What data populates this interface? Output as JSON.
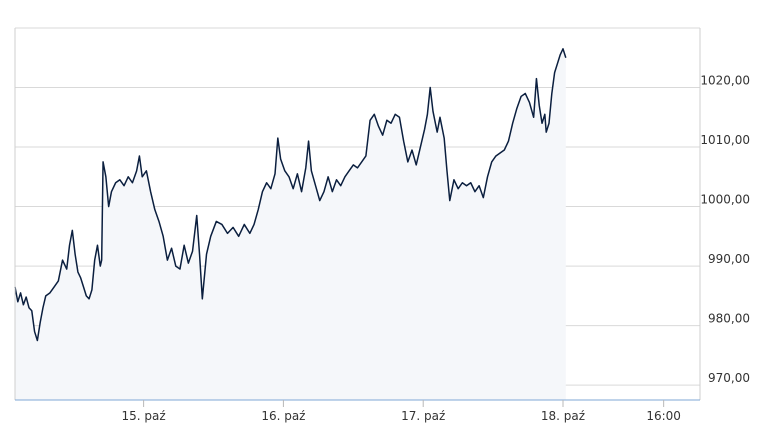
{
  "chart_data": {
    "type": "line",
    "title": "",
    "xlabel": "",
    "ylabel": "",
    "y_ticks": [
      "970,00",
      "980,00",
      "990,00",
      "1000,00",
      "1010,00",
      "1020,00"
    ],
    "y_tick_values": [
      970,
      980,
      990,
      1000,
      1010,
      1020
    ],
    "ylim": [
      967.5,
      1030
    ],
    "x_ticks": [
      "15. paź",
      "16. paź",
      "17. paź",
      "18. paź",
      "16:00"
    ],
    "x_tick_positions": [
      1,
      2,
      3,
      4,
      4.72
    ],
    "xlim": [
      0.08,
      4.98
    ],
    "grid": true,
    "legend": "none",
    "line_color": "#0b1f3f",
    "area_color": "#f5f7fa",
    "series": [
      {
        "points": [
          [
            0.08,
            986.5
          ],
          [
            0.1,
            984.0
          ],
          [
            0.12,
            985.5
          ],
          [
            0.14,
            983.5
          ],
          [
            0.16,
            984.8
          ],
          [
            0.18,
            983.0
          ],
          [
            0.2,
            982.5
          ],
          [
            0.22,
            979.0
          ],
          [
            0.24,
            977.5
          ],
          [
            0.26,
            980.5
          ],
          [
            0.28,
            983.0
          ],
          [
            0.3,
            985.0
          ],
          [
            0.33,
            985.5
          ],
          [
            0.36,
            986.5
          ],
          [
            0.39,
            987.5
          ],
          [
            0.42,
            991.0
          ],
          [
            0.45,
            989.5
          ],
          [
            0.47,
            993.5
          ],
          [
            0.49,
            996.0
          ],
          [
            0.51,
            992.0
          ],
          [
            0.53,
            989.0
          ],
          [
            0.55,
            988.0
          ],
          [
            0.57,
            986.5
          ],
          [
            0.59,
            985.0
          ],
          [
            0.61,
            984.5
          ],
          [
            0.63,
            986.0
          ],
          [
            0.65,
            991.0
          ],
          [
            0.67,
            993.5
          ],
          [
            0.69,
            990.0
          ],
          [
            0.7,
            991.0
          ],
          [
            0.71,
            1007.5
          ],
          [
            0.73,
            1005.0
          ],
          [
            0.75,
            1000.0
          ],
          [
            0.77,
            1002.5
          ],
          [
            0.8,
            1004.0
          ],
          [
            0.83,
            1004.5
          ],
          [
            0.86,
            1003.5
          ],
          [
            0.89,
            1005.0
          ],
          [
            0.92,
            1004.0
          ],
          [
            0.95,
            1006.0
          ],
          [
            0.97,
            1008.5
          ],
          [
            0.99,
            1005.0
          ],
          [
            1.02,
            1006.0
          ],
          [
            1.05,
            1002.5
          ],
          [
            1.08,
            999.5
          ],
          [
            1.11,
            997.5
          ],
          [
            1.14,
            995.0
          ],
          [
            1.17,
            991.0
          ],
          [
            1.2,
            993.0
          ],
          [
            1.23,
            990.0
          ],
          [
            1.26,
            989.5
          ],
          [
            1.29,
            993.5
          ],
          [
            1.32,
            990.5
          ],
          [
            1.35,
            992.5
          ],
          [
            1.38,
            998.5
          ],
          [
            1.4,
            992.0
          ],
          [
            1.42,
            984.5
          ],
          [
            1.45,
            992.0
          ],
          [
            1.48,
            995.0
          ],
          [
            1.52,
            997.5
          ],
          [
            1.56,
            997.0
          ],
          [
            1.6,
            995.5
          ],
          [
            1.64,
            996.5
          ],
          [
            1.68,
            995.0
          ],
          [
            1.72,
            997.0
          ],
          [
            1.76,
            995.5
          ],
          [
            1.79,
            997.0
          ],
          [
            1.82,
            999.5
          ],
          [
            1.85,
            1002.5
          ],
          [
            1.88,
            1004.0
          ],
          [
            1.91,
            1003.0
          ],
          [
            1.94,
            1005.5
          ],
          [
            1.96,
            1011.5
          ],
          [
            1.98,
            1008.0
          ],
          [
            2.01,
            1006.0
          ],
          [
            2.04,
            1005.0
          ],
          [
            2.07,
            1003.0
          ],
          [
            2.1,
            1005.5
          ],
          [
            2.13,
            1002.5
          ],
          [
            2.16,
            1006.5
          ],
          [
            2.18,
            1011.0
          ],
          [
            2.2,
            1006.0
          ],
          [
            2.23,
            1003.5
          ],
          [
            2.26,
            1001.0
          ],
          [
            2.29,
            1002.5
          ],
          [
            2.32,
            1005.0
          ],
          [
            2.35,
            1002.5
          ],
          [
            2.38,
            1004.5
          ],
          [
            2.41,
            1003.5
          ],
          [
            2.44,
            1005.0
          ],
          [
            2.47,
            1006.0
          ],
          [
            2.5,
            1007.0
          ],
          [
            2.53,
            1006.5
          ],
          [
            2.56,
            1007.5
          ],
          [
            2.59,
            1008.5
          ],
          [
            2.62,
            1014.5
          ],
          [
            2.65,
            1015.5
          ],
          [
            2.68,
            1013.5
          ],
          [
            2.71,
            1012.0
          ],
          [
            2.74,
            1014.5
          ],
          [
            2.77,
            1014.0
          ],
          [
            2.8,
            1015.5
          ],
          [
            2.83,
            1015.0
          ],
          [
            2.86,
            1011.0
          ],
          [
            2.89,
            1007.5
          ],
          [
            2.92,
            1009.5
          ],
          [
            2.95,
            1007.0
          ],
          [
            2.98,
            1010.0
          ],
          [
            3.01,
            1013.0
          ],
          [
            3.03,
            1015.5
          ],
          [
            3.05,
            1020.0
          ],
          [
            3.07,
            1016.0
          ],
          [
            3.1,
            1012.5
          ],
          [
            3.12,
            1015.0
          ],
          [
            3.15,
            1011.5
          ],
          [
            3.17,
            1006.0
          ],
          [
            3.19,
            1001.0
          ],
          [
            3.22,
            1004.5
          ],
          [
            3.25,
            1003.0
          ],
          [
            3.28,
            1004.0
          ],
          [
            3.31,
            1003.5
          ],
          [
            3.34,
            1004.0
          ],
          [
            3.37,
            1002.5
          ],
          [
            3.4,
            1003.5
          ],
          [
            3.43,
            1001.5
          ],
          [
            3.46,
            1005.0
          ],
          [
            3.49,
            1007.5
          ],
          [
            3.52,
            1008.5
          ],
          [
            3.55,
            1009.0
          ],
          [
            3.58,
            1009.5
          ],
          [
            3.61,
            1011.0
          ],
          [
            3.64,
            1014.0
          ],
          [
            3.67,
            1016.5
          ],
          [
            3.7,
            1018.5
          ],
          [
            3.73,
            1019.0
          ],
          [
            3.76,
            1017.5
          ],
          [
            3.79,
            1015.0
          ],
          [
            3.81,
            1021.5
          ],
          [
            3.83,
            1017.0
          ],
          [
            3.85,
            1014.0
          ],
          [
            3.87,
            1015.5
          ],
          [
            3.88,
            1012.5
          ],
          [
            3.9,
            1014.0
          ],
          [
            3.92,
            1019.0
          ],
          [
            3.94,
            1022.5
          ],
          [
            3.96,
            1024.0
          ],
          [
            3.98,
            1025.5
          ],
          [
            4.0,
            1026.5
          ],
          [
            4.02,
            1025.0
          ]
        ]
      }
    ]
  }
}
